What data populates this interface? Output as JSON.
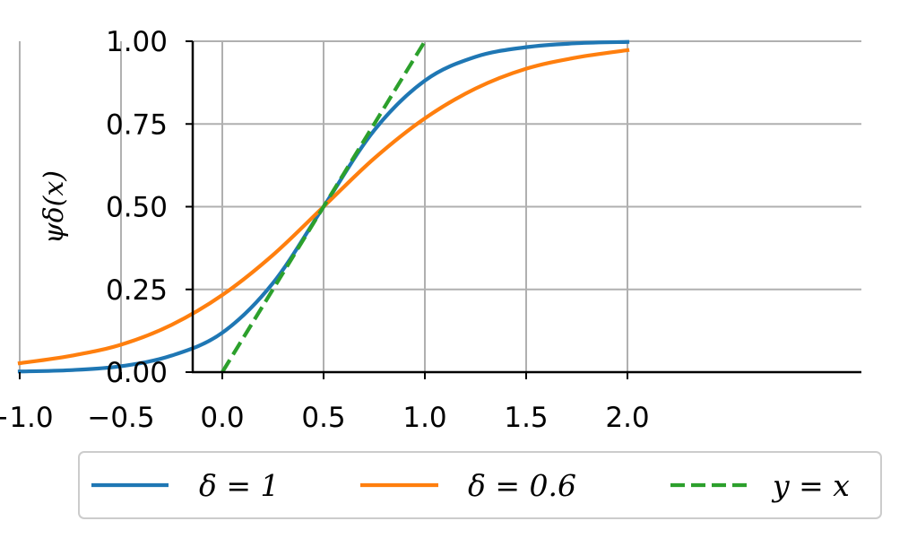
{
  "chart_data": {
    "type": "line",
    "title": "",
    "xlabel": "",
    "ylabel": "ψδ(x)",
    "xlim": [
      -1.15,
      2.15
    ],
    "ylim": [
      0,
      1
    ],
    "x_ticks": [
      -1.0,
      -0.5,
      0.0,
      0.5,
      1.0,
      1.5,
      2.0
    ],
    "x_tick_labels": [
      "−1.0",
      "−0.5",
      "0.0",
      "0.5",
      "1.0",
      "1.5",
      "2.0"
    ],
    "y_ticks": [
      0,
      0.25,
      0.5,
      0.75,
      1.0
    ],
    "y_tick_labels": [
      "0.00",
      "0.25",
      "0.50",
      "0.75",
      "1.00"
    ],
    "grid": true,
    "legend_position": "bottom-center-outside",
    "series": [
      {
        "name": "δ = 1",
        "color": "#1f77b4",
        "dash": "solid",
        "x": [
          -1.0,
          -0.75,
          -0.5,
          -0.25,
          0.0,
          0.25,
          0.5,
          0.75,
          1.0,
          1.25,
          1.5,
          1.75,
          2.0
        ],
        "y": [
          0.002,
          0.006,
          0.018,
          0.05,
          0.119,
          0.269,
          0.5,
          0.731,
          0.881,
          0.953,
          0.982,
          0.994,
          0.998
        ]
      },
      {
        "name": "δ = 0.6",
        "color": "#ff7f0e",
        "dash": "solid",
        "x": [
          -1.0,
          -0.75,
          -0.5,
          -0.25,
          0.0,
          0.25,
          0.5,
          0.75,
          1.0,
          1.25,
          1.5,
          1.75,
          2.0
        ],
        "y": [
          0.027,
          0.049,
          0.083,
          0.143,
          0.233,
          0.354,
          0.5,
          0.646,
          0.767,
          0.857,
          0.917,
          0.951,
          0.973
        ]
      },
      {
        "name": "y = x",
        "color": "#2ca02c",
        "dash": "dashed",
        "x": [
          0.0,
          0.25,
          0.5,
          0.75,
          1.0
        ],
        "y": [
          0.0,
          0.25,
          0.5,
          0.75,
          1.0
        ]
      }
    ]
  }
}
